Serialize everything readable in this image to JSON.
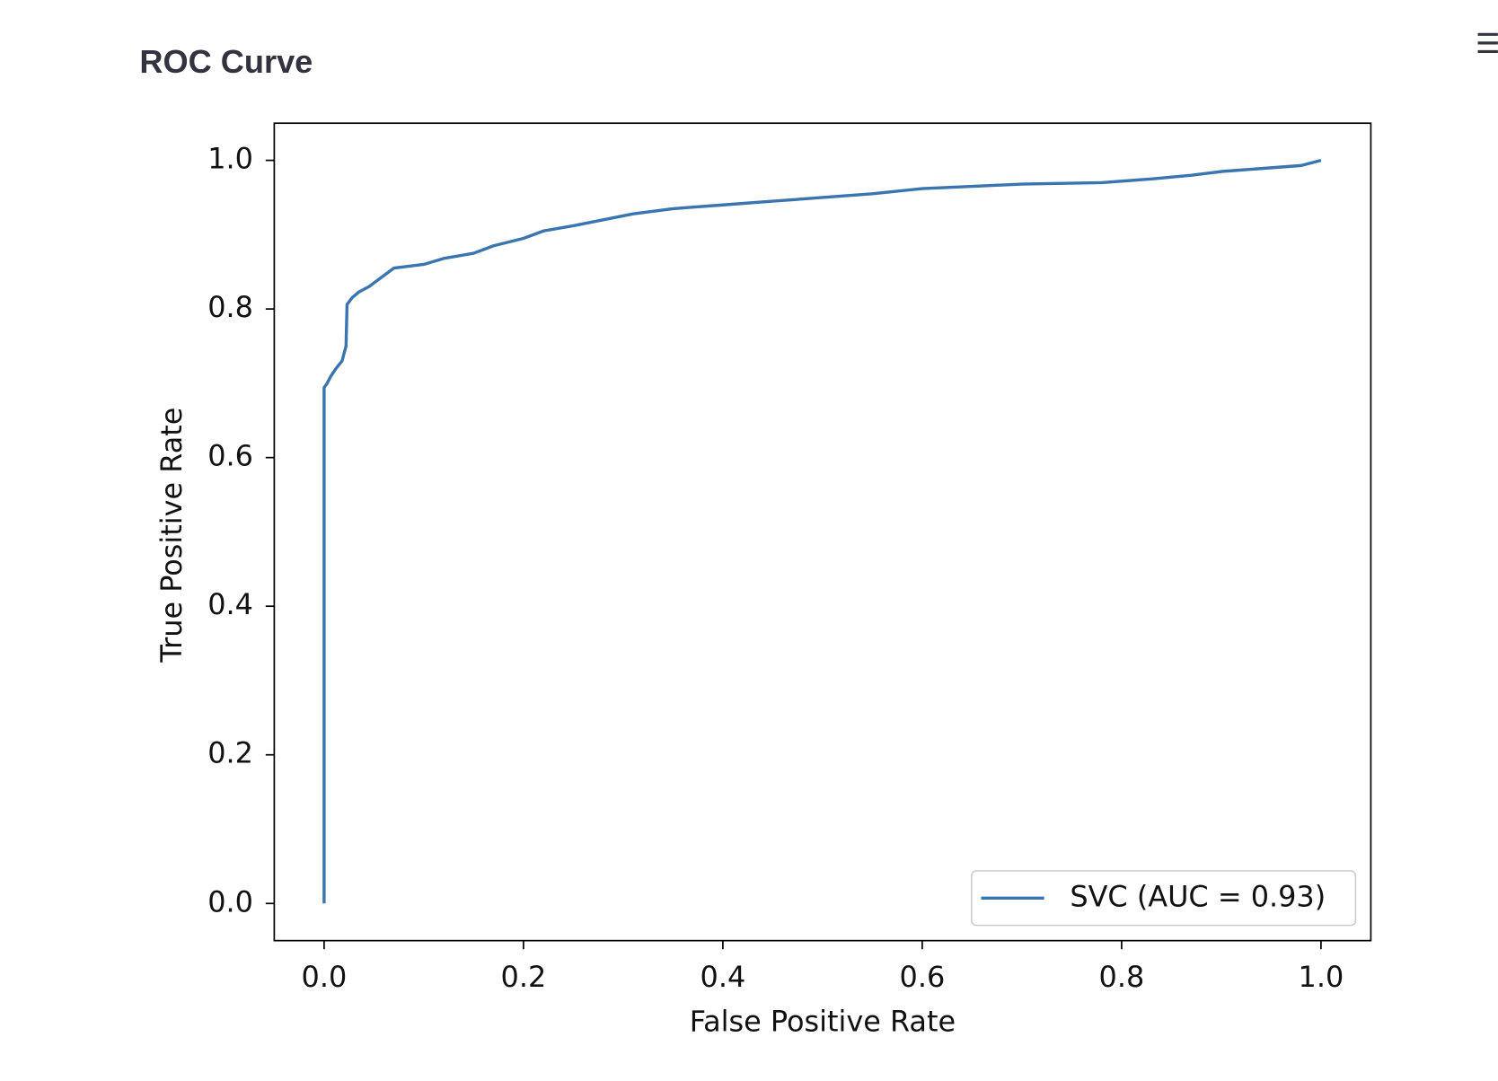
{
  "chart_data": {
    "type": "line",
    "title": "ROC Curve",
    "xlabel": "False Positive Rate",
    "ylabel": "True Positive Rate",
    "x": [
      0,
      0,
      0.003,
      0.007,
      0.012,
      0.018,
      0.022,
      0.023,
      0.028,
      0.035,
      0.045,
      0.055,
      0.07,
      0.1,
      0.12,
      0.15,
      0.17,
      0.2,
      0.22,
      0.25,
      0.28,
      0.31,
      0.35,
      0.4,
      0.45,
      0.5,
      0.55,
      0.6,
      0.7,
      0.78,
      0.83,
      0.87,
      0.9,
      0.95,
      0.98,
      1.0
    ],
    "series": [
      {
        "name": "SVC (AUC = 0.93)",
        "color": "#3a75b0",
        "values": [
          0,
          0.694,
          0.7,
          0.71,
          0.72,
          0.73,
          0.75,
          0.806,
          0.815,
          0.823,
          0.83,
          0.84,
          0.855,
          0.86,
          0.868,
          0.875,
          0.885,
          0.895,
          0.905,
          0.912,
          0.92,
          0.928,
          0.935,
          0.94,
          0.945,
          0.95,
          0.955,
          0.962,
          0.968,
          0.97,
          0.975,
          0.98,
          0.985,
          0.99,
          0.993,
          1.0
        ]
      }
    ],
    "xlim": [
      -0.05,
      1.05
    ],
    "ylim": [
      -0.05,
      1.05
    ],
    "xticks": [
      {
        "value": 0,
        "label": "0.0"
      },
      0.2,
      0.4,
      0.6,
      0.8,
      {
        "value": 1,
        "label": "1.0"
      }
    ],
    "yticks": [
      {
        "value": 0,
        "label": "0.0"
      },
      0.2,
      0.4,
      0.6,
      0.8,
      {
        "value": 1,
        "label": "1.0"
      }
    ],
    "legend": "lower right",
    "grid": false
  }
}
